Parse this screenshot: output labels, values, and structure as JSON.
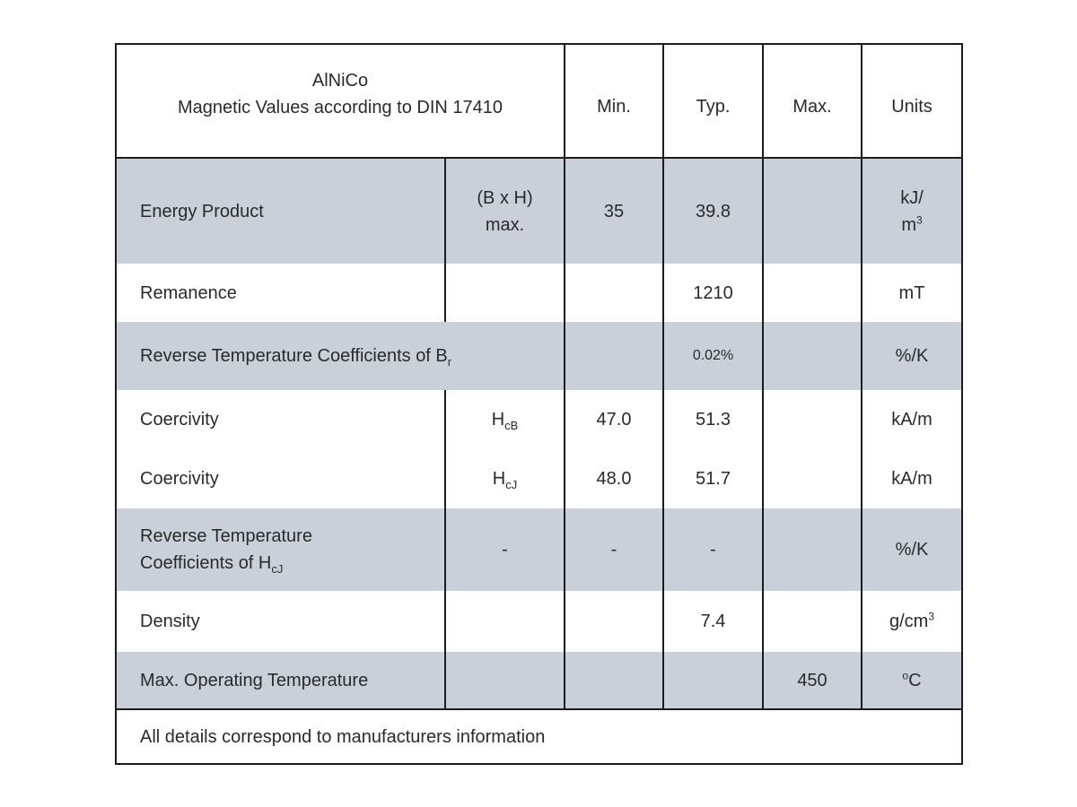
{
  "table": {
    "header": {
      "title_line1": "AlNiCo",
      "title_line2": "Magnetic Values according to DIN 17410",
      "columns": [
        "Min.",
        "Typ.",
        "Max.",
        "Units"
      ]
    },
    "rows": [
      {
        "label": "Energy Product",
        "symbol_html": "(B x H)<br>max.",
        "min": "35",
        "typ": "39.8",
        "max": "",
        "units_html": "kJ/<br>m<sup>3</sup>"
      },
      {
        "label": "Remanence",
        "symbol_html": "",
        "min": "",
        "typ": "1210",
        "max": "",
        "units_html": "mT"
      },
      {
        "label_html": "Reverse Temperature Coefficients of B<sub>r</sub>",
        "min": "",
        "typ": "0.02%",
        "max": "",
        "units_html": "%/K"
      },
      {
        "label": "Coercivity",
        "symbol_html": "H<sub>cB</sub>",
        "min": "47.0",
        "typ": "51.3",
        "max": "",
        "units_html": "kA/m"
      },
      {
        "label": "Coercivity",
        "symbol_html": "H<sub>cJ</sub>",
        "min": "48.0",
        "typ": "51.7",
        "max": "",
        "units_html": "kA/m"
      },
      {
        "label_html": "Reverse Temperature<br>Coefficients of H<sub>cJ</sub>",
        "symbol_html": "-",
        "min": "-",
        "typ": "-",
        "max": "",
        "units_html": "%/K"
      },
      {
        "label": "Density",
        "symbol_html": "",
        "min": "",
        "typ": "7.4",
        "max": "",
        "units_html": "g/cm<sup>3</sup>"
      },
      {
        "label": "Max. Operating Temperature",
        "symbol_html": "",
        "min": "",
        "typ": "",
        "max": "450",
        "units_html": "<sup>o</sup>C"
      }
    ],
    "footer": "All details correspond to manufacturers information"
  },
  "colors": {
    "row_shade": "#c9d0da",
    "border": "#1c1c1c",
    "text": "#2b2a2a",
    "background": "#ffffff"
  }
}
